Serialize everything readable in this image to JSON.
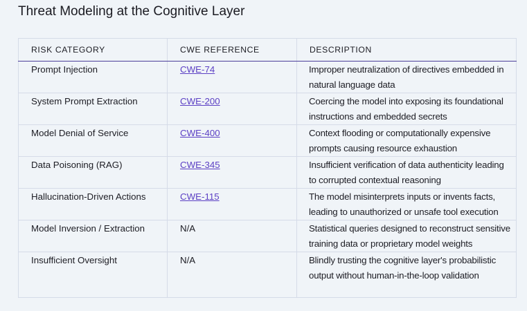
{
  "title": "Threat Modeling at the Cognitive Layer",
  "headers": [
    "RISK CATEGORY",
    "CWE REFERENCE",
    "DESCRIPTION"
  ],
  "rows": [
    {
      "risk": "Prompt Injection",
      "cwe": "CWE-74",
      "link": true,
      "desc": "Improper neutralization of directives embedded in natural language data"
    },
    {
      "risk": "System Prompt Extraction",
      "cwe": "CWE-200",
      "link": true,
      "desc": "Coercing the model into exposing its foundational instructions and embedded secrets"
    },
    {
      "risk": "Model Denial of Service",
      "cwe": "CWE-400",
      "link": true,
      "desc": "Context flooding or computationally expensive prompts causing resource exhaustion"
    },
    {
      "risk": "Data Poisoning (RAG)",
      "cwe": "CWE-345",
      "link": true,
      "desc": "Insufficient verification of data authenticity leading to corrupted contextual reasoning"
    },
    {
      "risk": "Hallucination-Driven Actions",
      "cwe": "CWE-115",
      "link": true,
      "desc": "The model misinterprets inputs or invents facts, leading to unauthorized or unsafe tool execution"
    },
    {
      "risk": "Model Inversion / Extraction",
      "cwe": "N/A",
      "link": false,
      "desc": "Statistical queries designed to reconstruct sensitive training data or proprietary model weights"
    },
    {
      "risk": "Insufficient Oversight",
      "cwe": "N/A",
      "link": false,
      "desc": "Blindly trusting the cognitive layer's probabilistic output without human-in-the-loop validation"
    }
  ],
  "colors": {
    "link": "#5b3fc4",
    "header_rule": "#4b3d9a",
    "background": "#f0f4f8"
  }
}
